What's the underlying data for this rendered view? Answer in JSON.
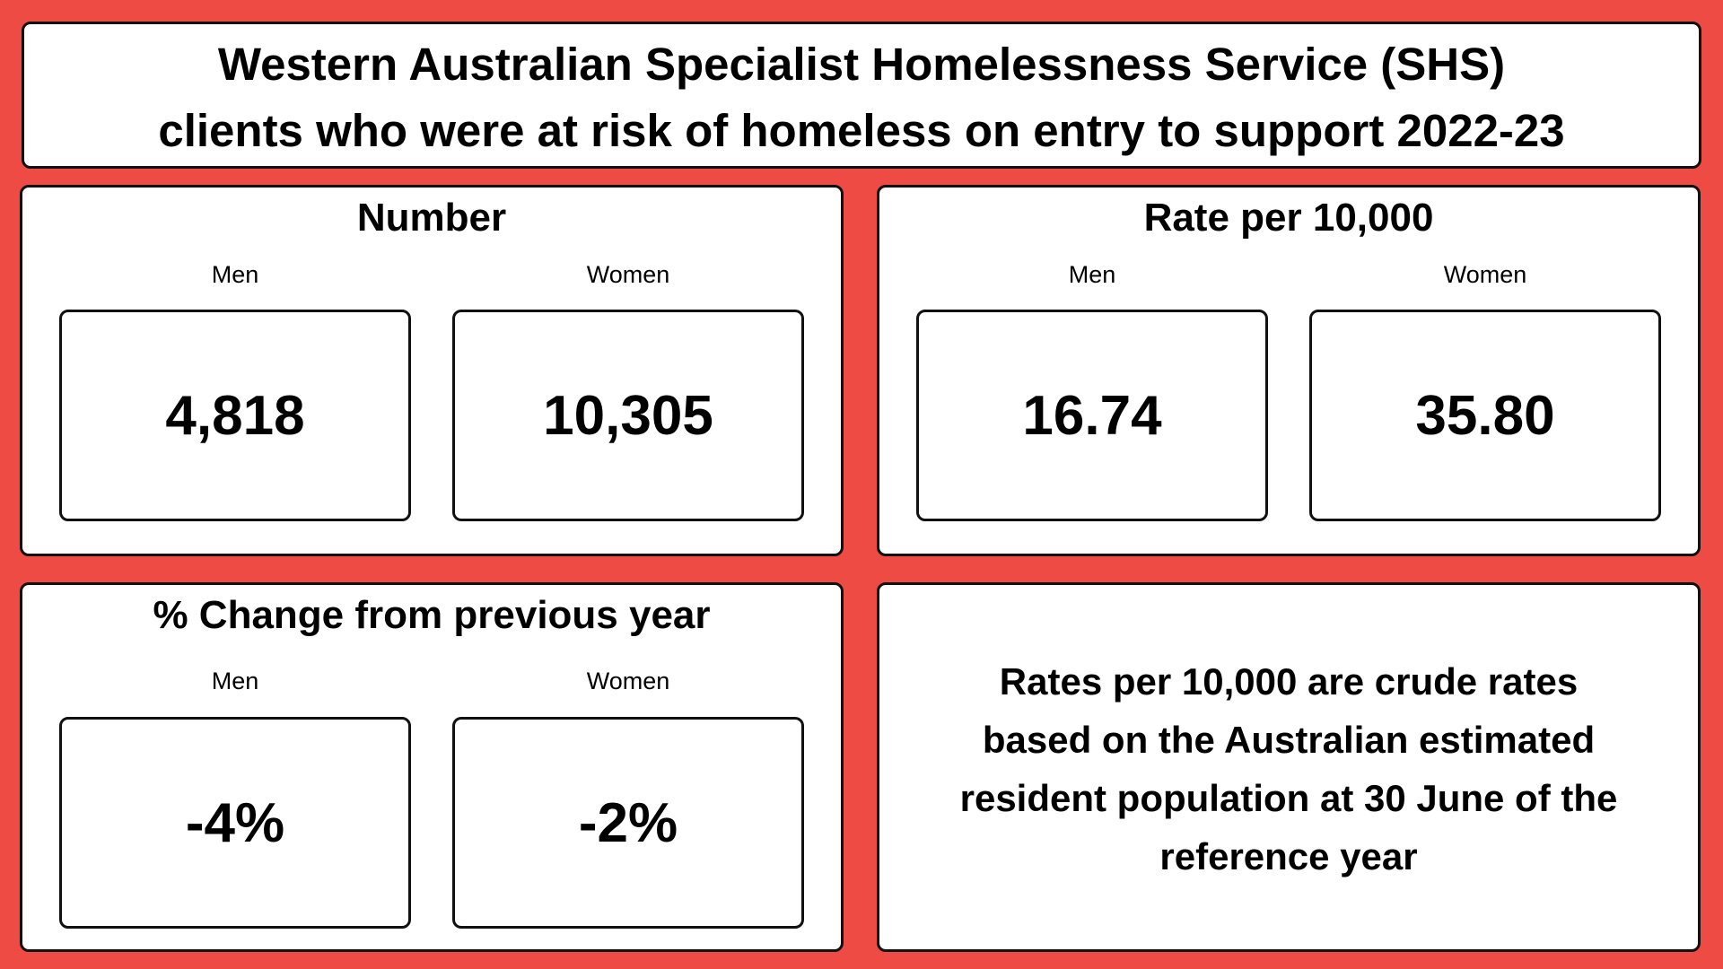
{
  "title": {
    "line1": "Western Australian Specialist Homelessness Service (SHS)",
    "line2": "clients who were at risk of homeless on entry to support 2022-23"
  },
  "number": {
    "heading": "Number",
    "men_label": "Men",
    "women_label": "Women",
    "men_value": "4,818",
    "women_value": "10,305"
  },
  "rate": {
    "heading": "Rate per 10,000",
    "men_label": "Men",
    "women_label": "Women",
    "men_value": "16.74",
    "women_value": "35.80"
  },
  "change": {
    "heading": "% Change from previous year",
    "men_label": "Men",
    "women_label": "Women",
    "men_value": "-4%",
    "women_value": "-2%"
  },
  "note": {
    "line1": "Rates per 10,000 are crude rates",
    "line2": "based on the Australian estimated",
    "line3": "resident population at 30 June of the",
    "line4": "reference year"
  },
  "colors": {
    "background": "#EF4B45",
    "panel": "#FFFFFF",
    "border": "#111111"
  }
}
